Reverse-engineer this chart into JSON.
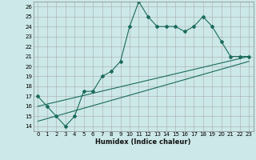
{
  "title": "",
  "xlabel": "Humidex (Indice chaleur)",
  "ylabel": "",
  "bg_color": "#cce8e8",
  "grid_color": "#aaaaaa",
  "line_color": "#1a6b5a",
  "xlim": [
    -0.5,
    23.5
  ],
  "ylim": [
    13.5,
    26.5
  ],
  "xticks": [
    0,
    1,
    2,
    3,
    4,
    5,
    6,
    7,
    8,
    9,
    10,
    11,
    12,
    13,
    14,
    15,
    16,
    17,
    18,
    19,
    20,
    21,
    22,
    23
  ],
  "yticks": [
    14,
    15,
    16,
    17,
    18,
    19,
    20,
    21,
    22,
    23,
    24,
    25,
    26
  ],
  "line1_x": [
    0,
    1,
    2,
    3,
    4,
    5,
    6,
    7,
    8,
    9,
    10,
    11,
    12,
    13,
    14,
    15,
    16,
    17,
    18,
    19,
    20,
    21,
    22,
    23
  ],
  "line1_y": [
    17,
    16,
    15,
    14,
    15,
    17.5,
    17.5,
    19,
    19.5,
    20.5,
    24,
    26.5,
    25,
    24,
    24,
    24,
    23.5,
    24,
    25,
    24,
    22.5,
    21,
    21,
    21
  ],
  "line2_x": [
    0,
    23
  ],
  "line2_y": [
    14.5,
    20.5
  ],
  "line3_x": [
    0,
    23
  ],
  "line3_y": [
    16.0,
    21.0
  ]
}
